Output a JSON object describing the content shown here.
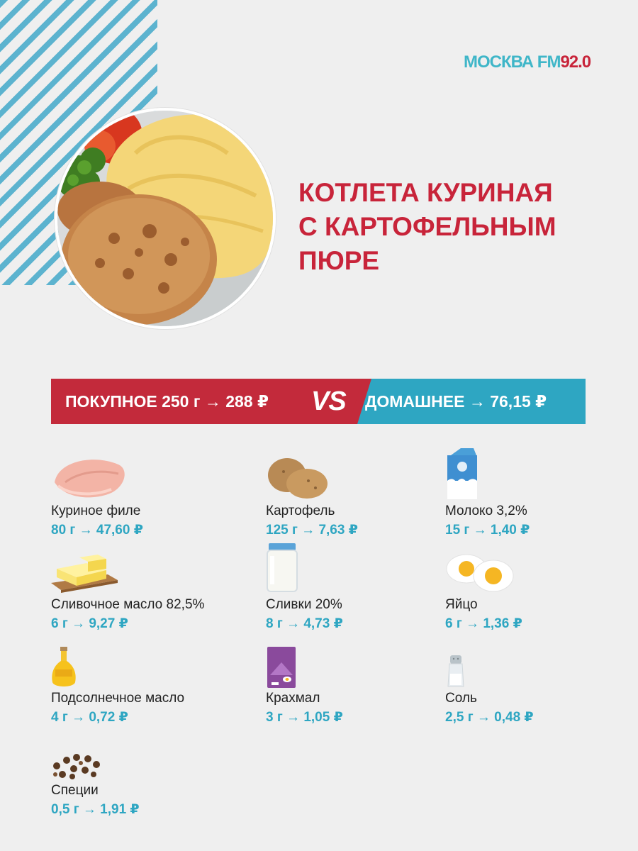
{
  "brand": {
    "logo_primary": "МОСКВА FM",
    "logo_frequency": "92.0"
  },
  "title": {
    "line1": "КОТЛЕТА КУРИНАЯ",
    "line2": "С КАРТОФЕЛЬНЫМ",
    "line3": "ПЮРЕ"
  },
  "comparison": {
    "store_label": "ПОКУПНОЕ 250 г → 288 ₽",
    "vs_label": "VS",
    "home_label": "ДОМАШНЕЕ → 76,15 ₽"
  },
  "ingredients": [
    {
      "name": "Куриное филе",
      "amount": "80 г → 47,60 ₽",
      "icon": "chicken-fillet-icon"
    },
    {
      "name": "Картофель",
      "amount": "125 г → 7,63 ₽",
      "icon": "potato-icon"
    },
    {
      "name": "Молоко 3,2%",
      "amount": "15 г → 1,40 ₽",
      "icon": "milk-carton-icon"
    },
    {
      "name": "Сливочное масло 82,5%",
      "amount": "6 г → 9,27 ₽",
      "icon": "butter-icon"
    },
    {
      "name": "Сливки 20%",
      "amount": "8 г → 4,73 ₽",
      "icon": "cream-jar-icon"
    },
    {
      "name": "Яйцо",
      "amount": "6 г → 1,36 ₽",
      "icon": "egg-icon"
    },
    {
      "name": "Подсолнечное масло",
      "amount": "4 г → 0,72 ₽",
      "icon": "oil-bottle-icon"
    },
    {
      "name": "Крахмал",
      "amount": "3 г → 1,05 ₽",
      "icon": "starch-pack-icon"
    },
    {
      "name": "Соль",
      "amount": "2,5 г → 0,48 ₽",
      "icon": "salt-shaker-icon"
    },
    {
      "name": "Специи",
      "amount": "0,5 г → 1,91 ₽",
      "icon": "spices-icon"
    }
  ],
  "colors": {
    "accent_red": "#c8243a",
    "accent_blue": "#2ea6c2",
    "background": "#efefef"
  }
}
